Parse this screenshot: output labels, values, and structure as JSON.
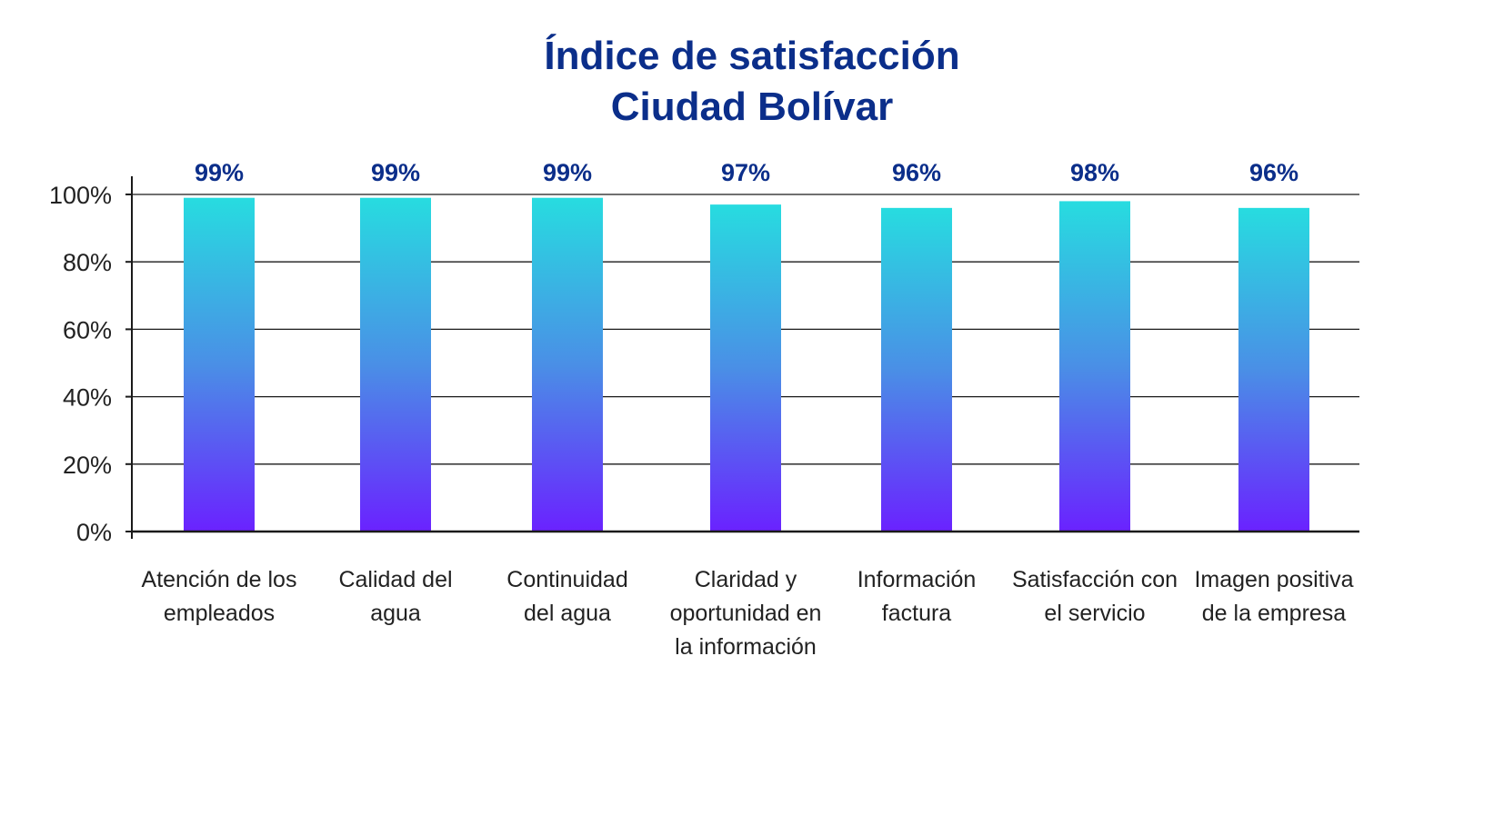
{
  "chart_data": {
    "type": "bar",
    "title": [
      "Índice de satisfacción",
      "Ciudad Bolívar"
    ],
    "categories": [
      [
        "Atención de los",
        "empleados"
      ],
      [
        "Calidad del",
        "agua"
      ],
      [
        "Continuidad",
        "del agua"
      ],
      [
        "Claridad y",
        "oportunidad en",
        "la información"
      ],
      [
        "Información",
        "factura"
      ],
      [
        "Satisfacción con",
        "el servicio"
      ],
      [
        "Imagen positiva",
        "de la empresa"
      ]
    ],
    "values": [
      99,
      99,
      99,
      97,
      96,
      98,
      96
    ],
    "data_labels": [
      "99%",
      "99%",
      "99%",
      "97%",
      "96%",
      "98%",
      "96%"
    ],
    "yticks": [
      0,
      20,
      40,
      60,
      80,
      100
    ],
    "ytick_labels": [
      "0%",
      "20%",
      "40%",
      "60%",
      "80%",
      "100%"
    ],
    "ylim": [
      0,
      100
    ],
    "grid": true,
    "xlabel": "",
    "ylabel": "",
    "colors": {
      "title": "#0b2e8a",
      "data_label": "#0b2e8a",
      "bar_top": "#27dce0",
      "bar_bottom": "#6a22ff",
      "axis": "#1a1a1a",
      "grid": "#1a1a1a",
      "tick_text": "#222222"
    }
  }
}
